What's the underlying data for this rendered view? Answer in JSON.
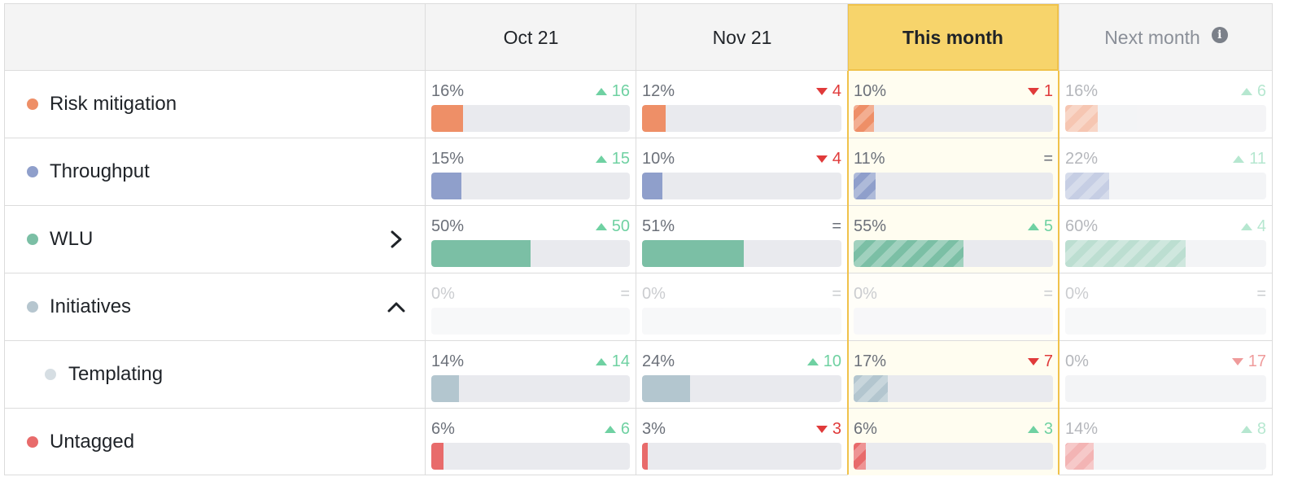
{
  "columns": [
    {
      "label": "Oct 21",
      "kind": "past"
    },
    {
      "label": "Nov 21",
      "kind": "past"
    },
    {
      "label": "This month",
      "kind": "current"
    },
    {
      "label": "Next month",
      "kind": "next",
      "icon": "info-icon"
    }
  ],
  "rows": [
    {
      "label": "Risk mitigation",
      "color": "#ee8f67",
      "indent": false,
      "chevron": null,
      "cells": [
        {
          "pct": "16%",
          "value": 16,
          "dir": "up",
          "delta": "16"
        },
        {
          "pct": "12%",
          "value": 12,
          "dir": "down",
          "delta": "4"
        },
        {
          "pct": "10%",
          "value": 10,
          "dir": "down",
          "delta": "1"
        },
        {
          "pct": "16%",
          "value": 16,
          "dir": "up",
          "delta": "6"
        }
      ]
    },
    {
      "label": "Throughput",
      "color": "#8f9fcb",
      "indent": false,
      "chevron": null,
      "cells": [
        {
          "pct": "15%",
          "value": 15,
          "dir": "up",
          "delta": "15"
        },
        {
          "pct": "10%",
          "value": 10,
          "dir": "down",
          "delta": "4"
        },
        {
          "pct": "11%",
          "value": 11,
          "dir": "eq",
          "delta": "="
        },
        {
          "pct": "22%",
          "value": 22,
          "dir": "up",
          "delta": "11"
        }
      ]
    },
    {
      "label": "WLU",
      "color": "#7bbfa5",
      "indent": false,
      "chevron": "chevron-right-icon",
      "cells": [
        {
          "pct": "50%",
          "value": 50,
          "dir": "up",
          "delta": "50"
        },
        {
          "pct": "51%",
          "value": 51,
          "dir": "eq",
          "delta": "="
        },
        {
          "pct": "55%",
          "value": 55,
          "dir": "up",
          "delta": "5"
        },
        {
          "pct": "60%",
          "value": 60,
          "dir": "up",
          "delta": "4"
        }
      ]
    },
    {
      "label": "Initiatives",
      "color": "#b6c6cf",
      "indent": false,
      "chevron": "chevron-up-icon",
      "faded": true,
      "cells": [
        {
          "pct": "0%",
          "value": 0,
          "dir": "eq",
          "delta": "="
        },
        {
          "pct": "0%",
          "value": 0,
          "dir": "eq",
          "delta": "="
        },
        {
          "pct": "0%",
          "value": 0,
          "dir": "eq",
          "delta": "="
        },
        {
          "pct": "0%",
          "value": 0,
          "dir": "eq",
          "delta": "="
        }
      ]
    },
    {
      "label": "Templating",
      "color": "#d6dee3",
      "indent": true,
      "chevron": null,
      "cells": [
        {
          "pct": "14%",
          "value": 14,
          "dir": "up",
          "delta": "14"
        },
        {
          "pct": "24%",
          "value": 24,
          "dir": "up",
          "delta": "10"
        },
        {
          "pct": "17%",
          "value": 17,
          "dir": "down",
          "delta": "7"
        },
        {
          "pct": "0%",
          "value": 0,
          "dir": "down",
          "delta": "17"
        }
      ]
    },
    {
      "label": "Untagged",
      "color": "#e86b6b",
      "indent": false,
      "chevron": null,
      "cells": [
        {
          "pct": "6%",
          "value": 6,
          "dir": "up",
          "delta": "6"
        },
        {
          "pct": "3%",
          "value": 3,
          "dir": "down",
          "delta": "3"
        },
        {
          "pct": "6%",
          "value": 6,
          "dir": "up",
          "delta": "3"
        },
        {
          "pct": "14%",
          "value": 14,
          "dir": "up",
          "delta": "8"
        }
      ]
    }
  ],
  "templating_bar_color": "#b3c6cf"
}
